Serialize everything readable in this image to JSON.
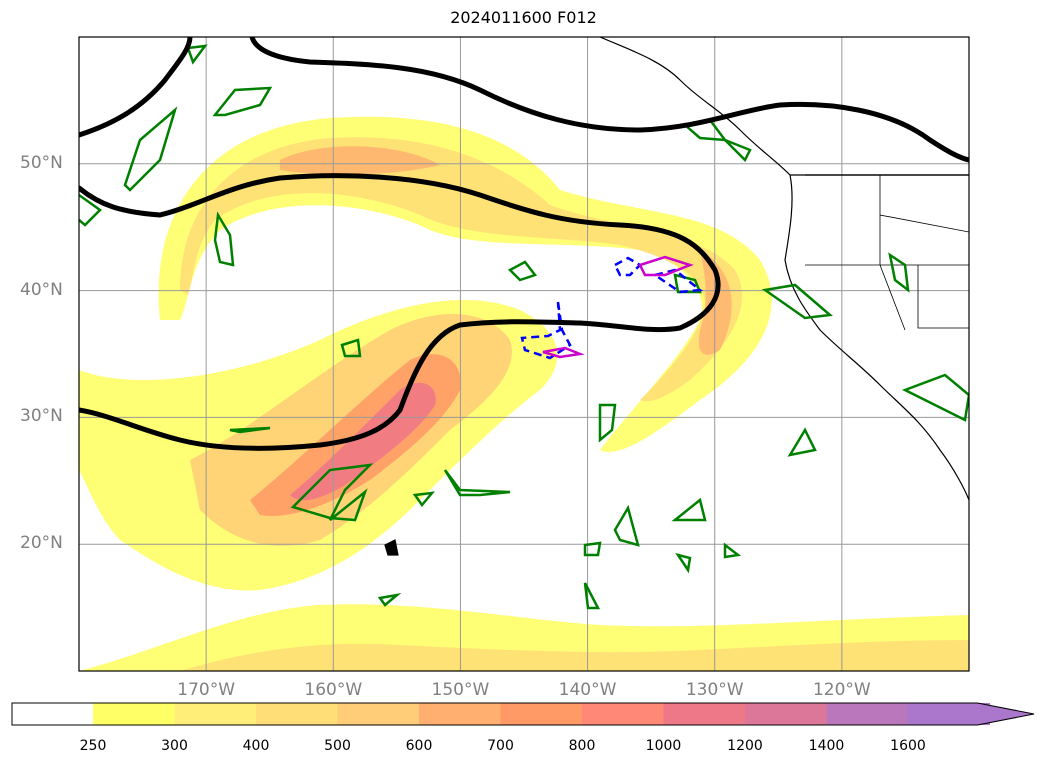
{
  "title": "2024011600 F012",
  "map": {
    "lat_ticks": [
      {
        "label": "50°N",
        "lat": 50
      },
      {
        "label": "40°N",
        "lat": 40
      },
      {
        "label": "30°N",
        "lat": 30
      },
      {
        "label": "20°N",
        "lat": 20
      }
    ],
    "lon_ticks": [
      {
        "label": "170°W",
        "lon": -170
      },
      {
        "label": "160°W",
        "lon": -160
      },
      {
        "label": "150°W",
        "lon": -150
      },
      {
        "label": "140°W",
        "lon": -140
      },
      {
        "label": "130°W",
        "lon": -130
      },
      {
        "label": "120°W",
        "lon": -120
      }
    ],
    "extent": {
      "lon_min": -180,
      "lon_max": -110,
      "lat_min": 10,
      "lat_max": 60
    },
    "grid": true
  },
  "colorbar": {
    "ticks": [
      "250",
      "300",
      "400",
      "500",
      "600",
      "700",
      "800",
      "1000",
      "1200",
      "1400",
      "1600"
    ],
    "colors": [
      "#ffff66",
      "#ffee77",
      "#ffdd77",
      "#ffcc77",
      "#ffb070",
      "#ff9966",
      "#ff8877",
      "#ee7788",
      "#dd7799",
      "#bb77bb",
      "#aa77cc"
    ],
    "extend": "max"
  },
  "legend_colors": {
    "jet_contour": "#000000",
    "green_contour": "#008000",
    "blue_dashed_contour": "#0000ff",
    "magenta_contour": "#cc00cc",
    "coastline": "#000000"
  }
}
